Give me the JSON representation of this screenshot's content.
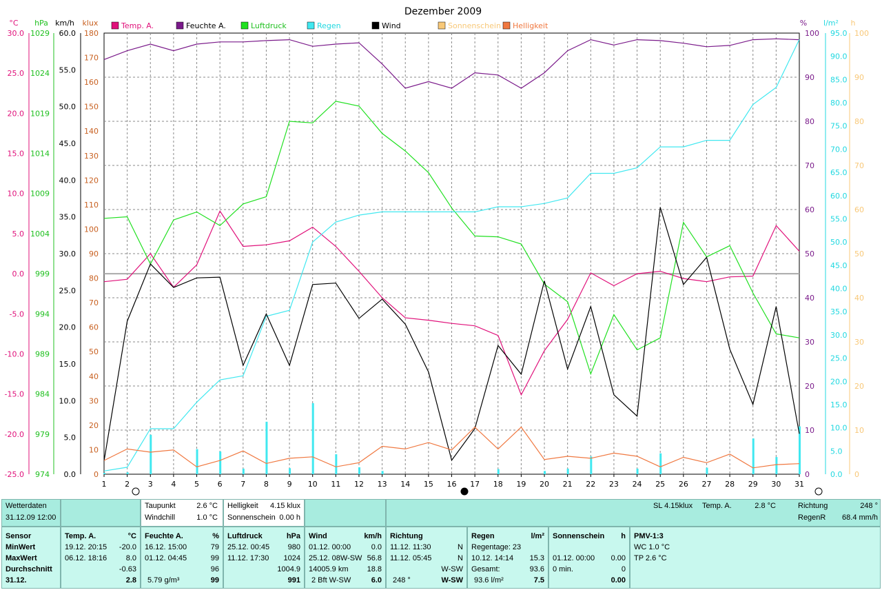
{
  "chart_data": {
    "type": "line",
    "title": "Dezember 2009",
    "x": [
      1,
      2,
      3,
      4,
      5,
      6,
      7,
      8,
      9,
      10,
      11,
      12,
      13,
      14,
      15,
      16,
      17,
      18,
      19,
      20,
      21,
      22,
      23,
      24,
      25,
      26,
      27,
      28,
      29,
      30,
      31
    ],
    "axes": {
      "temp": {
        "unit": "°C",
        "min": -25,
        "max": 30,
        "ticks": [
          "30.0",
          "25.0",
          "20.0",
          "15.0",
          "10.0",
          "5.0",
          "0.0",
          "-5.0",
          "-10.0",
          "-15.0",
          "-20.0",
          "-25.0"
        ]
      },
      "pressure": {
        "unit": "hPa",
        "ticks": [
          "1029",
          "1024",
          "1019",
          "1014",
          "1009",
          "1004",
          "999",
          "994",
          "989",
          "984",
          "979",
          "974"
        ]
      },
      "wind": {
        "unit": "km/h",
        "min": 0,
        "max": 60,
        "ticks": [
          "60.0",
          "55.0",
          "50.0",
          "45.0",
          "40.0",
          "35.0",
          "30.0",
          "25.0",
          "20.0",
          "15.0",
          "10.0",
          "5.0",
          "0.0"
        ]
      },
      "klux": {
        "unit": "klux",
        "min": 0,
        "max": 180,
        "ticks": [
          "180",
          "170",
          "160",
          "150",
          "140",
          "130",
          "120",
          "110",
          "100",
          "90",
          "80",
          "70",
          "60",
          "50",
          "40",
          "30",
          "20",
          "10",
          "0"
        ]
      },
      "humidity": {
        "unit": "%",
        "min": 0,
        "max": 100,
        "ticks": [
          "100",
          "90",
          "80",
          "70",
          "60",
          "50",
          "40",
          "30",
          "20",
          "10",
          "0"
        ]
      },
      "rain": {
        "unit": "l/m²",
        "min": 0,
        "max": 95,
        "ticks": [
          "95.0",
          "90.0",
          "85.0",
          "80.0",
          "75.0",
          "70.0",
          "65.0",
          "60.0",
          "55.0",
          "50.0",
          "45.0",
          "40.0",
          "35.0",
          "30.0",
          "25.0",
          "20.0",
          "15.0",
          "10.0",
          "5.0",
          "0.0"
        ]
      },
      "sun": {
        "unit": "h",
        "ticks": [
          "100",
          "90",
          "80",
          "70",
          "60",
          "50",
          "40",
          "30",
          "20",
          "10",
          "0"
        ]
      }
    },
    "legend": [
      {
        "name": "Temp. A.",
        "color": "#e0107a"
      },
      {
        "name": "Feuchte A.",
        "color": "#7a1a8a"
      },
      {
        "name": "Luftdruck",
        "color": "#20e020"
      },
      {
        "name": "Regen",
        "color": "#40e8f0"
      },
      {
        "name": "Wind",
        "color": "#000000"
      },
      {
        "name": "Sonnenschein",
        "color": "#f8c878"
      },
      {
        "name": "Helligkeit",
        "color": "#f07840"
      }
    ],
    "series": [
      {
        "name": "Temp. A.",
        "axis": "temp",
        "color": "#e0107a",
        "values": [
          -1.0,
          -0.7,
          2.5,
          -1.7,
          1.1,
          7.8,
          3.4,
          3.6,
          4.1,
          5.8,
          3.4,
          0.3,
          -3.0,
          -5.5,
          -5.8,
          -6.2,
          -6.5,
          -7.7,
          -15.1,
          -9.6,
          -5.7,
          0.1,
          -1.5,
          0.0,
          0.3,
          -0.6,
          -1.0,
          -0.4,
          -0.3,
          6.0,
          2.8
        ]
      },
      {
        "name": "Feuchte A.",
        "axis": "humidity",
        "color": "#7a1a8a",
        "values": [
          94,
          96,
          97.5,
          96,
          97.5,
          98,
          98,
          98.3,
          98.5,
          97,
          97.5,
          97.8,
          93,
          87.5,
          89,
          87.5,
          91,
          90.5,
          87.5,
          91,
          96,
          98.5,
          97.3,
          98.5,
          98.3,
          97.7,
          96.9,
          97.2,
          98.5,
          98.7,
          98.5
        ]
      },
      {
        "name": "Luftdruck",
        "axis": "temp",
        "color": "#20e020",
        "values": [
          6.9,
          7.1,
          1.2,
          6.7,
          7.7,
          6.0,
          8.7,
          9.6,
          19.0,
          18.8,
          21.5,
          20.9,
          17.5,
          15.3,
          12.6,
          8.2,
          4.7,
          4.6,
          3.7,
          -1.3,
          -3.5,
          -12.5,
          -5.1,
          -9.5,
          -8.0,
          6.4,
          2.1,
          3.5,
          -2.4,
          -7.5,
          -8.0
        ]
      },
      {
        "name": "Regen",
        "axis": "rain",
        "color": "#40e8f0",
        "values": [
          0.7,
          1.5,
          9.8,
          9.8,
          15.5,
          20.3,
          21.2,
          34.0,
          35.3,
          50.0,
          54.3,
          55.8,
          56.5,
          56.5,
          56.5,
          56.5,
          56.5,
          57.6,
          57.6,
          58.3,
          59.5,
          64.8,
          64.8,
          66.0,
          70.5,
          70.5,
          71.9,
          71.9,
          79.6,
          83.3,
          93.6
        ]
      },
      {
        "name": "Wind",
        "axis": "wind",
        "color": "#000000",
        "values": [
          1.8,
          20.8,
          28.6,
          25.4,
          26.7,
          26.8,
          14.8,
          21.8,
          14.8,
          25.8,
          26.0,
          21.2,
          23.8,
          20.4,
          13.9,
          1.9,
          6.2,
          17.5,
          13.6,
          26.3,
          14.3,
          22.8,
          10.8,
          7.9,
          36.3,
          25.8,
          29.5,
          17.0,
          9.5,
          22.8,
          5.5
        ]
      },
      {
        "name": "Helligkeit",
        "axis": "klux",
        "color": "#f07840",
        "values": [
          5.6,
          10.3,
          9.0,
          9.9,
          3.0,
          5.6,
          9.5,
          4.4,
          6.5,
          7.1,
          3.0,
          4.7,
          11.4,
          10.3,
          12.9,
          9.9,
          19.2,
          10.3,
          19.2,
          6.0,
          7.3,
          6.5,
          8.6,
          7.3,
          3.0,
          6.9,
          4.7,
          8.2,
          2.6,
          3.9,
          4.3
        ]
      }
    ],
    "bars": {
      "name": "Regen (Tag)",
      "axis": "rain",
      "color": "#40e8f0",
      "values": [
        0.3,
        0.4,
        8.5,
        0,
        5.4,
        4.9,
        1.2,
        11.3,
        1.3,
        15.3,
        4.3,
        1.5,
        0.7,
        0,
        0,
        0,
        0,
        1.1,
        0,
        0.7,
        1.2,
        3.8,
        0,
        1.2,
        4.5,
        0,
        1.4,
        0,
        7.7,
        3.7,
        10.3
      ]
    },
    "grid": true,
    "reference_line_at": 0
  },
  "info": {
    "wetterdaten_label": "Wetterdaten",
    "datetime": "31.12.09 12:00",
    "taupunkt_label": "Taupunkt",
    "taupunkt_value": "2.6 °C",
    "windchill_label": "Windchill",
    "windchill_value": "1.0 °C",
    "helligkeit_label": "Helligkeit",
    "helligkeit_value": "4.15 klux",
    "sonnenschein_label": "Sonnenschein",
    "sonnenschein_value": "0.00 h",
    "sl_text": "SL 4.15klux",
    "tempa_label": "Temp. A.",
    "tempa_value": "2.8 °C",
    "richtung_label": "Richtung",
    "richtung_value": "248 °",
    "regenr_label": "RegenR",
    "regenr_value": "68.4 mm/h"
  },
  "stats": {
    "sensor": {
      "h": "Sensor",
      "min": "MinWert",
      "max": "MaxWert",
      "avg": "Durchschnitt",
      "cur": "31.12."
    },
    "temp": {
      "h": "Temp. A.",
      "u": "°C",
      "min_d": "19.12.  20:15",
      "min_v": "-20.0",
      "max_d": "06.12.  18:16",
      "max_v": "8.0",
      "avg_v": "-0.63",
      "cur_v": "2.8"
    },
    "feuchte": {
      "h": "Feuchte A.",
      "u": "%",
      "min_d": "16.12.  15:00",
      "min_v": "79",
      "max_d": "01.12.  04:45",
      "max_v": "99",
      "avg_v": "96",
      "cur_l": "5.79 g/m³",
      "cur_v": "99"
    },
    "luftdruck": {
      "h": "Luftdruck",
      "u": "hPa",
      "min_d": "25.12.  00:45",
      "min_v": "980",
      "max_d": "11.12.  17:30",
      "max_v": "1024",
      "avg_v": "1004.9",
      "cur_v": "991"
    },
    "wind": {
      "h": "Wind",
      "u": "km/h",
      "min_d": "01.12.  00:00",
      "min_v": "0.0",
      "max_d": "25.12.  08W-SW",
      "max_v": "56.8",
      "avg_l": "14005.9 km",
      "avg_v": "18.8",
      "cur_l": "2 Bft W-SW",
      "cur_v": "6.0"
    },
    "richtung": {
      "h": "Richtung",
      "min_d": "11.12.  11:30",
      "min_v": "N",
      "max_d": "11.12.  05:45",
      "max_v": "N",
      "avg_v": "W-SW",
      "cur_l": "248 °",
      "cur_v": "W-SW"
    },
    "regen": {
      "h": "Regen",
      "u": "l/m²",
      "min_d": "Regentage: 23",
      "max_d": "10.12.  14:14",
      "max_v": "15.3",
      "avg_l": "Gesamt:",
      "avg_v": "93.6",
      "cur_l": "93.6 l/m²",
      "cur_v": "7.5"
    },
    "sonne": {
      "h": "Sonnenschein",
      "u": "h",
      "max_d": "01.12.  00:00",
      "max_v": "0.00",
      "avg_l": "0 min.",
      "avg_v": "0",
      "cur_v": "0.00"
    },
    "pmv": {
      "h": "PMV-1:3",
      "l1": "WC 1.0 °C",
      "l2": "TP 2.6 °C"
    }
  }
}
